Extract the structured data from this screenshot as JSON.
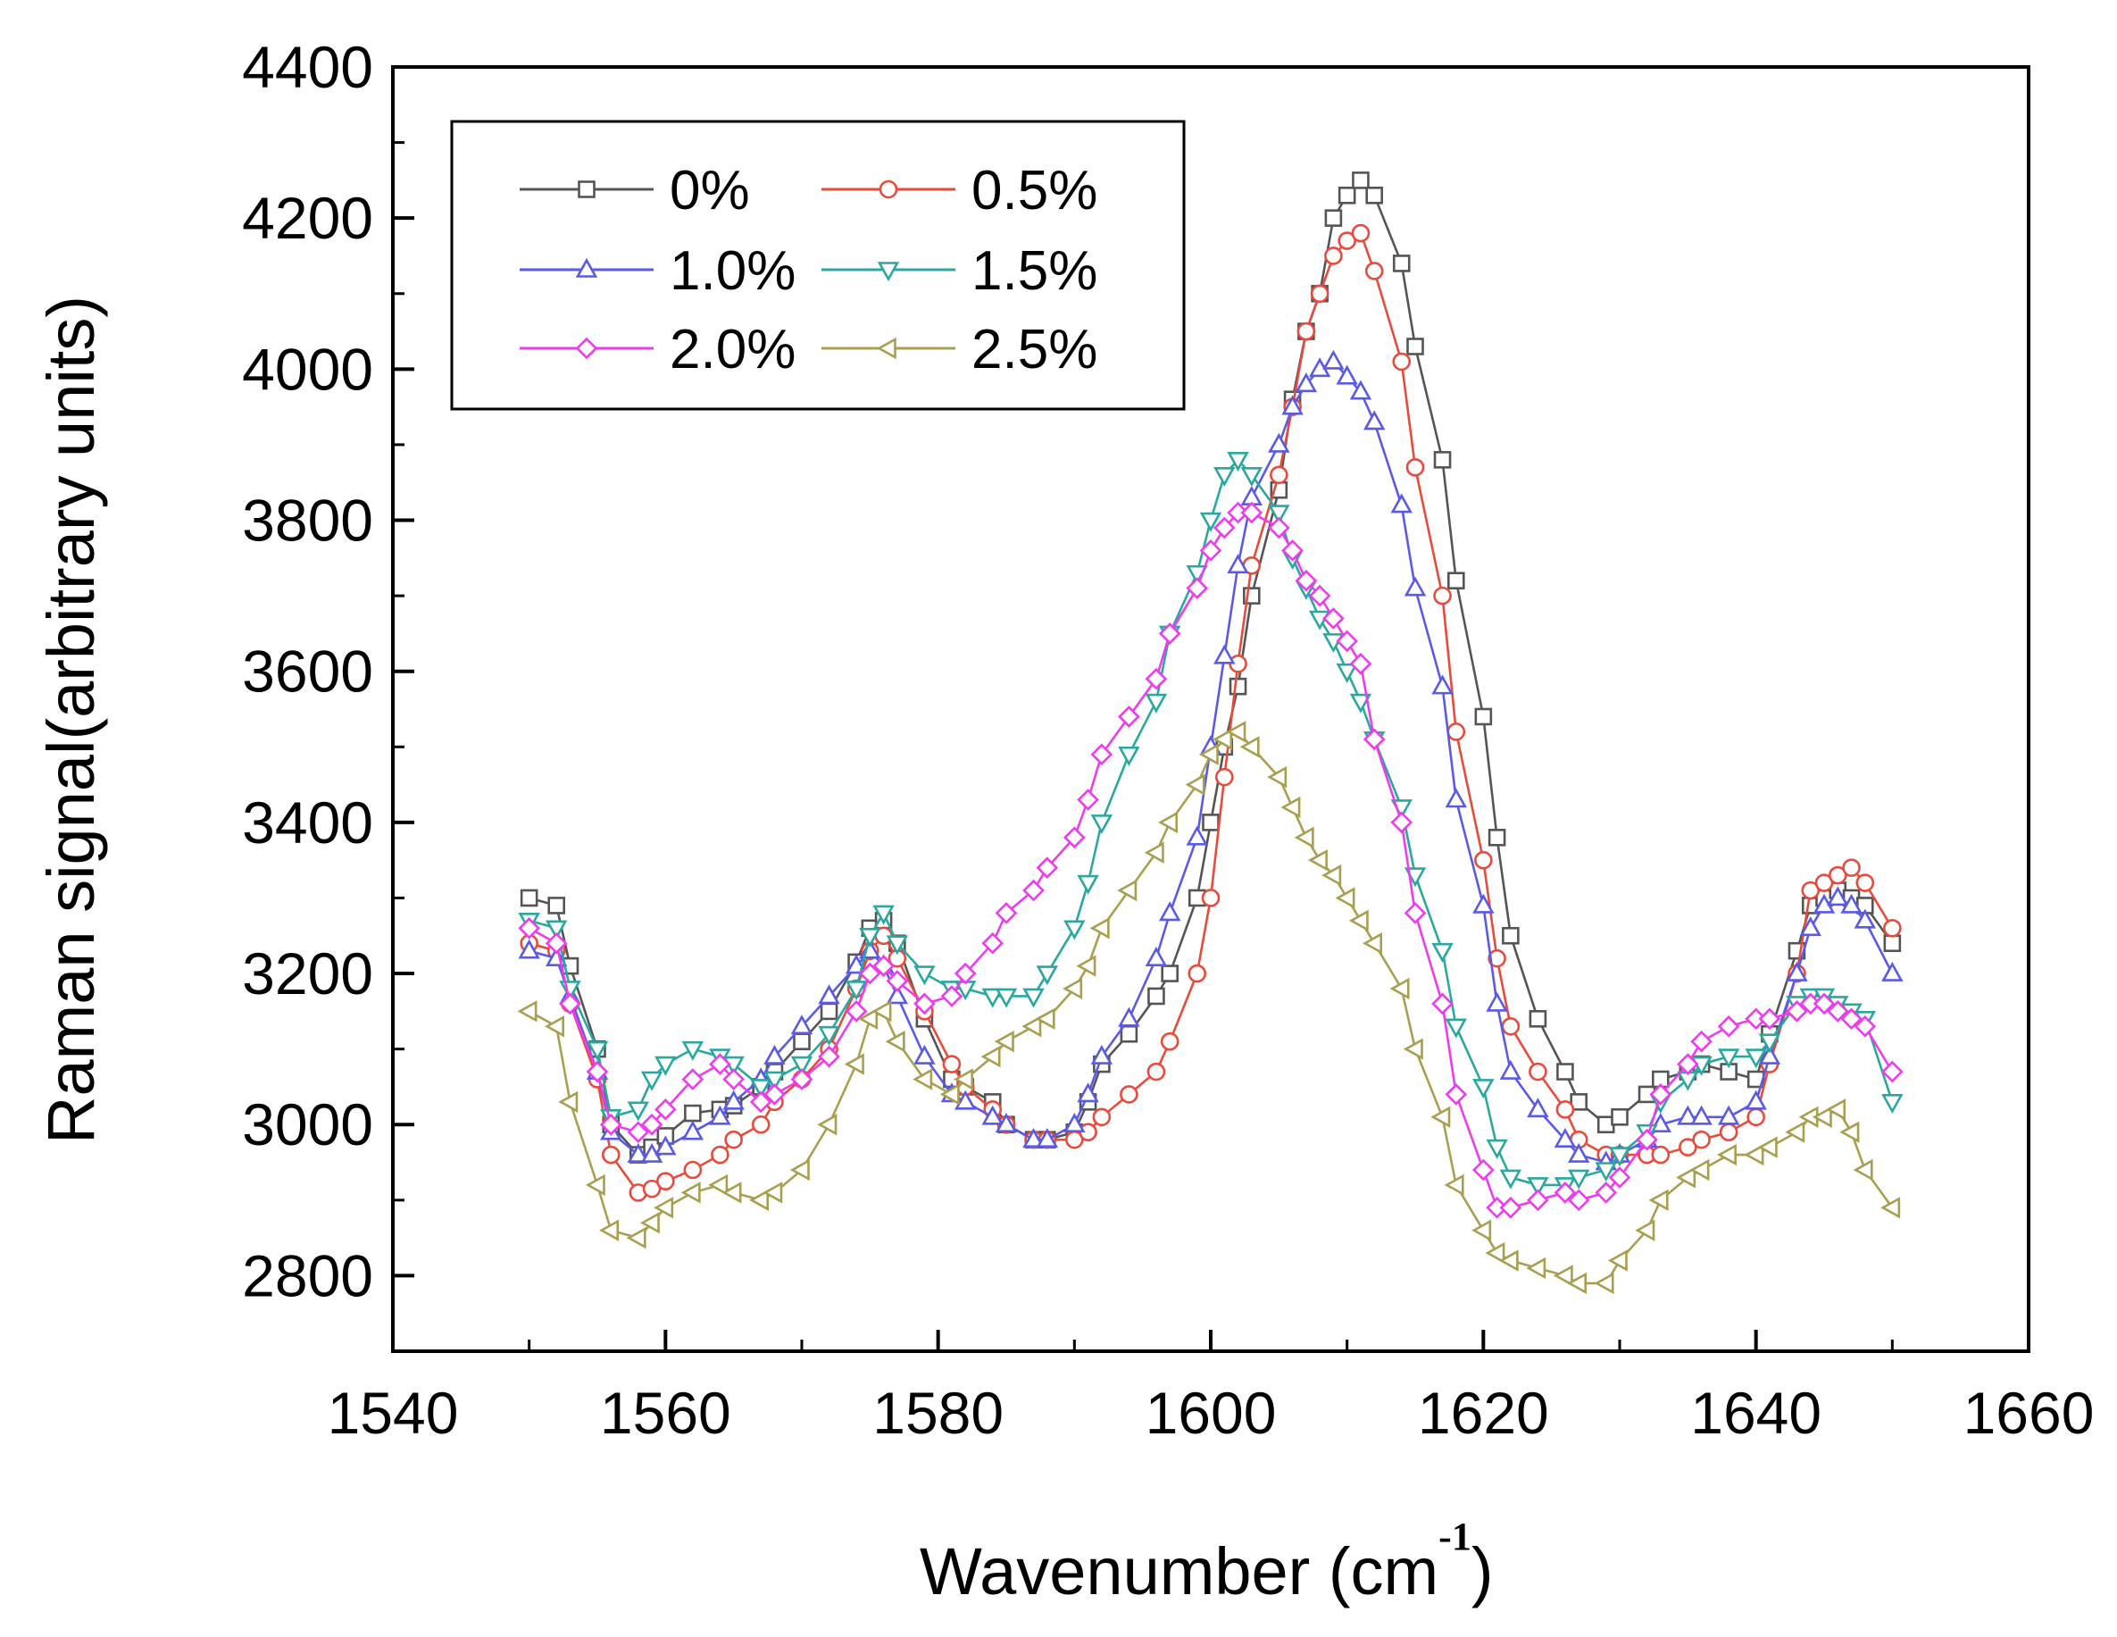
{
  "chart_data": {
    "type": "line",
    "title": "",
    "xlabel": "Wavenumber (cm",
    "xlabel_superscript": "-1",
    "xlabel_close": ")",
    "ylabel": "Raman signal(arbitrary units)",
    "xlim": [
      1540,
      1660
    ],
    "ylim": [
      2700,
      4400
    ],
    "xticks": [
      "1540",
      "1560",
      "1580",
      "1600",
      "1620",
      "1640",
      "1660"
    ],
    "yticks": [
      "2800",
      "3000",
      "3200",
      "3400",
      "3600",
      "3800",
      "4000",
      "4200",
      "4400"
    ],
    "legend_position": "top-left",
    "x": [
      1550,
      1552,
      1553,
      1555,
      1556,
      1558,
      1559,
      1560,
      1562,
      1564,
      1565,
      1567,
      1568,
      1570,
      1572,
      1574,
      1575,
      1576,
      1577,
      1579,
      1581,
      1582,
      1584,
      1585,
      1587,
      1588,
      1590,
      1591,
      1592,
      1594,
      1596,
      1597,
      1599,
      1600,
      1601,
      1602,
      1603,
      1605,
      1606,
      1607,
      1608,
      1609,
      1610,
      1611,
      1612,
      1614,
      1615,
      1617,
      1618,
      1620,
      1621,
      1622,
      1624,
      1626,
      1627,
      1629,
      1630,
      1632,
      1633,
      1635,
      1636,
      1638,
      1640,
      1641,
      1643,
      1644,
      1645,
      1646,
      1647,
      1648,
      1650
    ],
    "series": [
      {
        "name": "0%",
        "color": "#555555",
        "marker": "square",
        "values": [
          3300,
          3290,
          3210,
          3100,
          3000,
          2960,
          2970,
          2985,
          3015,
          3020,
          3025,
          3050,
          3070,
          3110,
          3150,
          3215,
          3260,
          3270,
          3240,
          3140,
          3060,
          3050,
          3030,
          3000,
          2980,
          2980,
          2990,
          3030,
          3080,
          3120,
          3170,
          3200,
          3300,
          3400,
          3500,
          3580,
          3700,
          3840,
          3960,
          4050,
          4100,
          4200,
          4230,
          4250,
          4230,
          4140,
          4030,
          3880,
          3720,
          3540,
          3380,
          3250,
          3140,
          3070,
          3030,
          3000,
          3010,
          3040,
          3060,
          3070,
          3080,
          3070,
          3060,
          3120,
          3230,
          3290,
          3300,
          3310,
          3300,
          3290,
          3240
        ]
      },
      {
        "name": "0.5%",
        "color": "#e84a3c",
        "marker": "circle",
        "values": [
          3240,
          3230,
          3160,
          3060,
          2960,
          2910,
          2915,
          2925,
          2940,
          2960,
          2980,
          3000,
          3030,
          3060,
          3100,
          3180,
          3230,
          3250,
          3220,
          3150,
          3080,
          3050,
          3020,
          3000,
          2980,
          2980,
          2980,
          2990,
          3010,
          3040,
          3070,
          3110,
          3200,
          3300,
          3460,
          3610,
          3740,
          3860,
          3950,
          4050,
          4100,
          4150,
          4170,
          4180,
          4130,
          4010,
          3870,
          3700,
          3520,
          3350,
          3220,
          3130,
          3070,
          3020,
          2980,
          2960,
          2960,
          2960,
          2960,
          2970,
          2980,
          2990,
          3010,
          3080,
          3200,
          3310,
          3320,
          3330,
          3340,
          3320,
          3260
        ]
      },
      {
        "name": "1.0%",
        "color": "#5a5ae6",
        "marker": "triangle-up",
        "values": [
          3230,
          3220,
          3170,
          3070,
          2990,
          2960,
          2960,
          2970,
          2990,
          3010,
          3030,
          3060,
          3090,
          3130,
          3170,
          3210,
          3230,
          3210,
          3170,
          3090,
          3040,
          3030,
          3010,
          3000,
          2980,
          2980,
          3000,
          3040,
          3090,
          3140,
          3220,
          3280,
          3380,
          3500,
          3620,
          3740,
          3830,
          3900,
          3950,
          3980,
          4000,
          4010,
          3990,
          3970,
          3930,
          3820,
          3710,
          3580,
          3430,
          3290,
          3160,
          3070,
          3020,
          2980,
          2960,
          2950,
          2960,
          2980,
          3000,
          3010,
          3010,
          3010,
          3030,
          3090,
          3200,
          3260,
          3290,
          3300,
          3290,
          3270,
          3200
        ]
      },
      {
        "name": "1.5%",
        "color": "#2aa8a0",
        "marker": "triangle-down",
        "values": [
          3270,
          3260,
          3180,
          3100,
          3010,
          3020,
          3060,
          3080,
          3100,
          3090,
          3080,
          3050,
          3060,
          3080,
          3120,
          3180,
          3250,
          3280,
          3240,
          3200,
          3180,
          3180,
          3170,
          3170,
          3170,
          3200,
          3260,
          3320,
          3400,
          3490,
          3560,
          3650,
          3730,
          3800,
          3860,
          3880,
          3860,
          3810,
          3750,
          3710,
          3670,
          3640,
          3600,
          3560,
          3510,
          3420,
          3330,
          3230,
          3130,
          3050,
          2970,
          2930,
          2920,
          2920,
          2930,
          2940,
          2960,
          2990,
          3030,
          3060,
          3080,
          3090,
          3090,
          3110,
          3160,
          3170,
          3170,
          3160,
          3150,
          3140,
          3030
        ]
      },
      {
        "name": "2.0%",
        "color": "#ee3bee",
        "marker": "diamond",
        "values": [
          3260,
          3240,
          3160,
          3070,
          3000,
          2990,
          3000,
          3020,
          3060,
          3080,
          3060,
          3030,
          3040,
          3060,
          3090,
          3150,
          3200,
          3210,
          3190,
          3160,
          3170,
          3200,
          3240,
          3280,
          3310,
          3340,
          3380,
          3430,
          3490,
          3540,
          3590,
          3650,
          3710,
          3760,
          3790,
          3810,
          3810,
          3790,
          3760,
          3720,
          3700,
          3670,
          3640,
          3610,
          3510,
          3400,
          3280,
          3160,
          3040,
          2940,
          2890,
          2890,
          2900,
          2910,
          2900,
          2910,
          2930,
          2980,
          3040,
          3080,
          3110,
          3130,
          3140,
          3140,
          3150,
          3160,
          3160,
          3150,
          3140,
          3130,
          3070
        ]
      },
      {
        "name": "2.5%",
        "color": "#a8a050",
        "marker": "triangle-left",
        "values": [
          3150,
          3130,
          3030,
          2920,
          2860,
          2850,
          2870,
          2890,
          2910,
          2920,
          2910,
          2900,
          2910,
          2940,
          3000,
          3080,
          3140,
          3150,
          3110,
          3060,
          3040,
          3060,
          3090,
          3110,
          3130,
          3140,
          3180,
          3210,
          3260,
          3310,
          3360,
          3400,
          3450,
          3490,
          3510,
          3520,
          3500,
          3460,
          3420,
          3380,
          3350,
          3330,
          3300,
          3270,
          3240,
          3180,
          3100,
          3010,
          2920,
          2860,
          2830,
          2820,
          2810,
          2800,
          2790,
          2790,
          2820,
          2860,
          2900,
          2930,
          2940,
          2960,
          2960,
          2970,
          2990,
          3010,
          3010,
          3020,
          2990,
          2940,
          2890
        ]
      }
    ]
  }
}
